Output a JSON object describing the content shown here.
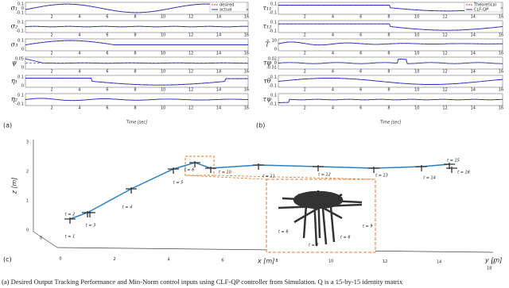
{
  "panel_a": {
    "label": "(a)",
    "legend": [
      "desired",
      "actual"
    ],
    "x_label": "Time [sec]",
    "x_ticks": [
      "2",
      "4",
      "6",
      "8",
      "10",
      "12",
      "14",
      "16"
    ],
    "rows": [
      {
        "label": "σ₁",
        "y_ticks": [
          "0.1",
          "0",
          "-0.1"
        ]
      },
      {
        "label": "σ₂",
        "y_ticks": [
          "0.1",
          "-0.1"
        ]
      },
      {
        "label": "σ₃",
        "y_ticks": [
          "0.1",
          "0"
        ]
      },
      {
        "label": "ψ",
        "y_ticks": [
          "0.05",
          "0"
        ]
      },
      {
        "label": "η₁",
        "y_ticks": [
          "0.1",
          "0"
        ]
      },
      {
        "label": "η₂",
        "y_ticks": [
          "0.1",
          "-0.1"
        ]
      }
    ]
  },
  "panel_b": {
    "label": "(b)",
    "legend": [
      "Theoretical",
      "CLF-QP"
    ],
    "x_label": "Time [sec]",
    "x_ticks": [
      "2",
      "4",
      "6",
      "8",
      "10",
      "12",
      "14",
      "16"
    ],
    "rows": [
      {
        "label": "τ₁₁",
        "y_ticks": [
          "0.1",
          "-0.1"
        ]
      },
      {
        "label": "τ₁₂",
        "y_ticks": [
          "0.1",
          "-0.1"
        ]
      },
      {
        "label": "T̄",
        "y_ticks": [
          "10",
          "0"
        ]
      },
      {
        "label": "τφ",
        "y_ticks": [
          "0.02",
          "0",
          "-0.01"
        ]
      },
      {
        "label": "τθ",
        "y_ticks": [
          "0.1",
          "-0.1"
        ]
      },
      {
        "label": "τψ",
        "y_ticks": [
          "0.1",
          "-0.1"
        ]
      }
    ]
  },
  "panel_c": {
    "label": "(c)",
    "z_label": "z [m]",
    "x_label": "x [m]",
    "y_label": "y [m]",
    "z_ticks": [
      "0",
      "1",
      "2",
      "3"
    ],
    "x_ticks": [
      "0",
      "2",
      "4",
      "6",
      "8",
      "10",
      "12",
      "14",
      "16"
    ],
    "y_ticks": [
      "0",
      "18"
    ],
    "time_labels": [
      "t = 1",
      "t = 2",
      "t = 3",
      "t = 4",
      "t = 5",
      "t = 6",
      "t = 10",
      "t = 11",
      "t = 12",
      "t = 13",
      "t = 14",
      "t = 15",
      "t = 16"
    ],
    "inset_labels": [
      "t = 6",
      "t = 7",
      "t = 8",
      "t = 9"
    ]
  },
  "caption": "(a) Desired Output Tracking Performance and Min-Norm control inputs using CLF-QP controller from Simulation. Q is a 15-by-15 identity matrix"
}
